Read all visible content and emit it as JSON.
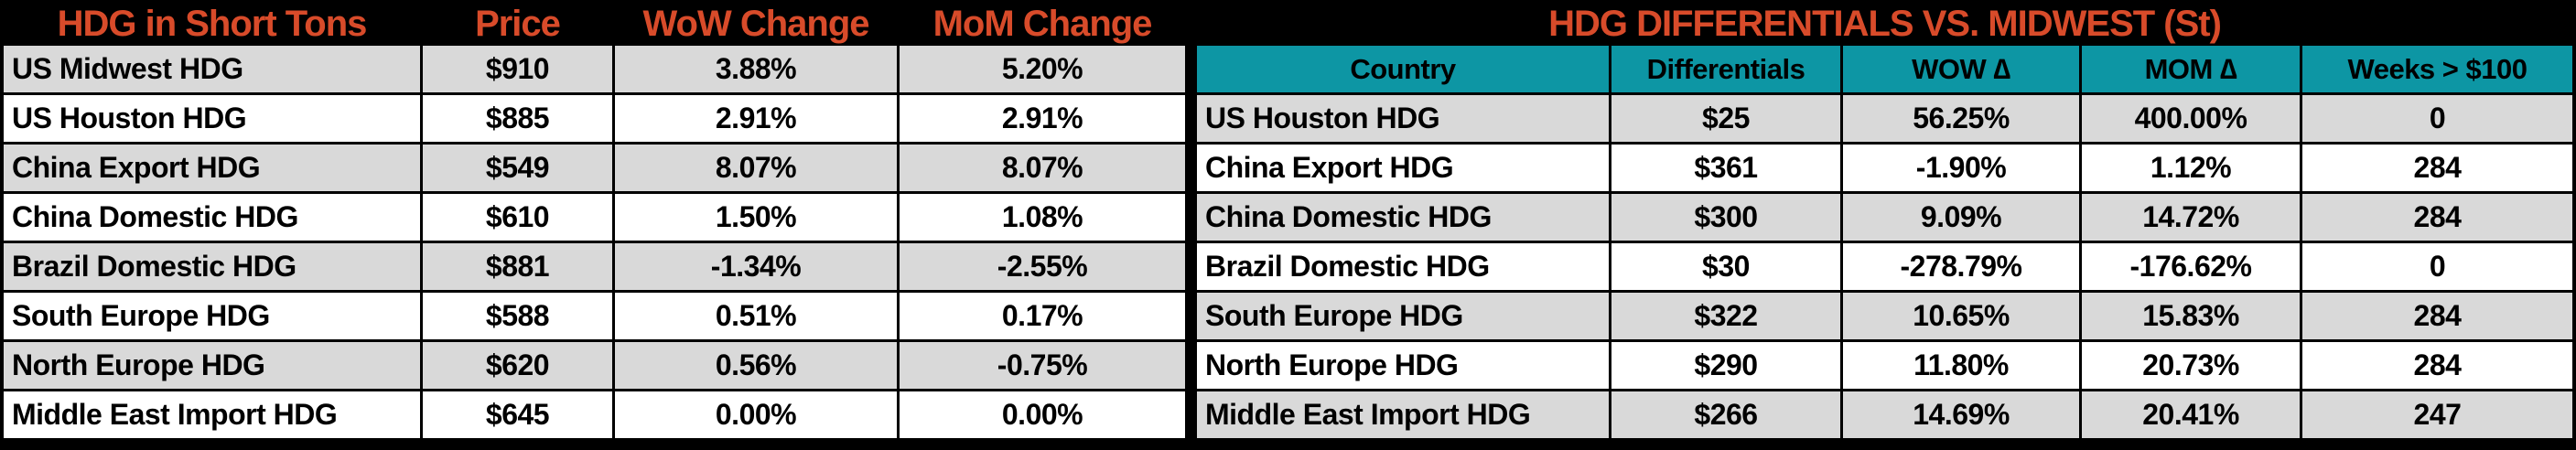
{
  "chart_data": [
    {
      "type": "table",
      "title": "HDG in Short Tons",
      "columns": [
        "HDG in Short Tons",
        "Price",
        "WoW Change",
        "MoM Change"
      ],
      "rows": [
        [
          "US Midwest HDG",
          "$910",
          "3.88%",
          "5.20%"
        ],
        [
          "US Houston HDG",
          "$885",
          "2.91%",
          "2.91%"
        ],
        [
          "China Export HDG",
          "$549",
          "8.07%",
          "8.07%"
        ],
        [
          "China Domestic HDG",
          "$610",
          "1.50%",
          "1.08%"
        ],
        [
          "Brazil Domestic HDG",
          "$881",
          "-1.34%",
          "-2.55%"
        ],
        [
          "South Europe HDG",
          "$588",
          "0.51%",
          "0.17%"
        ],
        [
          "North Europe HDG",
          "$620",
          "0.56%",
          "-0.75%"
        ],
        [
          "Middle East Import HDG",
          "$645",
          "0.00%",
          "0.00%"
        ]
      ]
    },
    {
      "type": "table",
      "title": "HDG DIFFERENTIALS VS. MIDWEST (St)",
      "columns": [
        "Country",
        "Differentials",
        "WOW ∆",
        "MOM ∆",
        "Weeks > $100"
      ],
      "rows": [
        [
          "US Houston HDG",
          "$25",
          "56.25%",
          "400.00%",
          "0"
        ],
        [
          "China Export HDG",
          "$361",
          "-1.90%",
          "1.12%",
          "284"
        ],
        [
          "China Domestic HDG",
          "$300",
          "9.09%",
          "14.72%",
          "284"
        ],
        [
          "Brazil Domestic HDG",
          "$30",
          "-278.79%",
          "-176.62%",
          "0"
        ],
        [
          "South Europe HDG",
          "$322",
          "10.65%",
          "15.83%",
          "284"
        ],
        [
          "North Europe HDG",
          "$290",
          "11.80%",
          "20.73%",
          "284"
        ],
        [
          "Middle East Import HDG",
          "$266",
          "14.69%",
          "20.41%",
          "247"
        ]
      ]
    }
  ],
  "colors": {
    "header_bg": "#000000",
    "title_text": "#D84B2A",
    "accent_teal": "#0D96A4",
    "row_gray": "#D9D9D9",
    "row_white": "#FFFFFF",
    "cell_text": "#000000"
  }
}
